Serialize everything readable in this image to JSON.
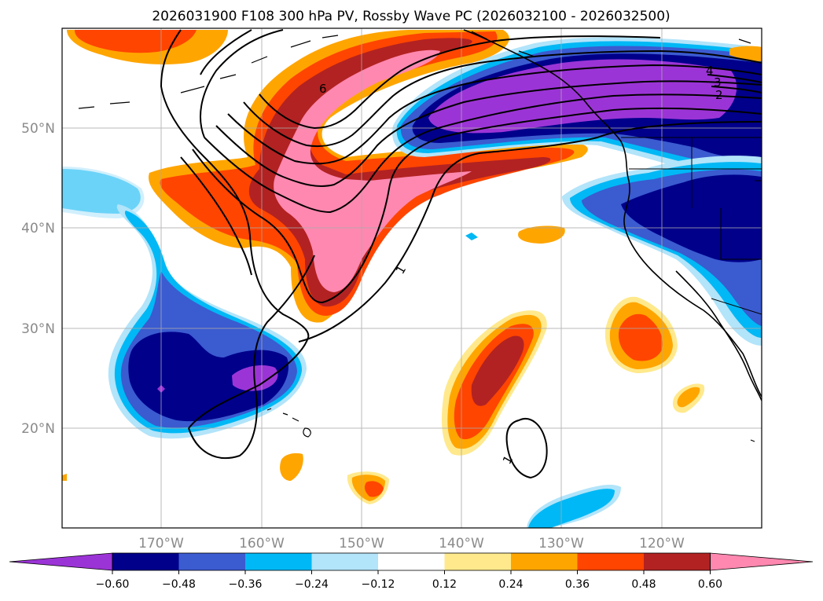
{
  "chart_data": {
    "type": "map-contour",
    "title": "2026031900 F108 300 hPa PV, Rossby Wave PC (2026032100 - 2026032500)",
    "lon_range": [
      -180,
      -110
    ],
    "lat_range": [
      10,
      60
    ],
    "x_ticks": [
      {
        "lon": -170,
        "label": "170°W"
      },
      {
        "lon": -160,
        "label": "160°W"
      },
      {
        "lon": -150,
        "label": "150°W"
      },
      {
        "lon": -140,
        "label": "140°W"
      },
      {
        "lon": -130,
        "label": "130°W"
      },
      {
        "lon": -120,
        "label": "120°W"
      }
    ],
    "y_ticks": [
      {
        "lat": 20,
        "label": "20°N"
      },
      {
        "lat": 30,
        "label": "30°N"
      },
      {
        "lat": 40,
        "label": "40°N"
      },
      {
        "lat": 50,
        "label": "50°N"
      }
    ],
    "grid": true,
    "colorbar": {
      "levels": [
        -0.6,
        -0.48,
        -0.36,
        -0.24,
        -0.12,
        0.12,
        0.24,
        0.36,
        0.48,
        0.6
      ],
      "tick_labels": [
        "−0.60",
        "−0.48",
        "−0.36",
        "−0.24",
        "−0.12",
        "0.12",
        "0.24",
        "0.36",
        "0.48",
        "0.60"
      ],
      "colors": [
        "#9b34d6",
        "#00008b",
        "#3b5bd0",
        "#00b8f5",
        "#b2e4fa",
        "#ffffff",
        "#ffe98c",
        "#ffa500",
        "#ff4500",
        "#b22222",
        "#ff88b0"
      ],
      "extend": "both"
    },
    "contour_labels": [
      "6",
      "1",
      "1",
      "4",
      "3",
      "2"
    ],
    "shaded_regions": [
      {
        "name": "pv-trough-positive-main",
        "value": 0.6,
        "center": [
          -157,
          45
        ]
      },
      {
        "name": "pv-ridge-negative-northeast",
        "value": -0.6,
        "center": [
          -125,
          53
        ]
      },
      {
        "name": "pv-negative-west-coast",
        "value": -0.48,
        "center": [
          -118,
          42
        ]
      },
      {
        "name": "pv-negative-subtropical",
        "value": -0.6,
        "center": [
          -166,
          26
        ]
      },
      {
        "name": "pv-positive-subtropical",
        "value": 0.48,
        "center": [
          -136,
          27
        ]
      },
      {
        "name": "pv-positive-baja",
        "value": 0.36,
        "center": [
          -124,
          29
        ]
      }
    ]
  }
}
